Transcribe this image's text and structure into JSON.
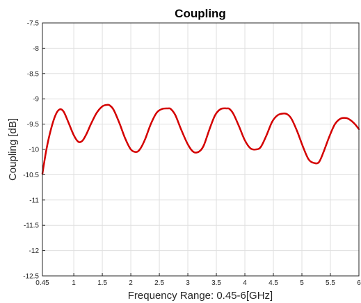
{
  "chart_data": {
    "type": "line",
    "title": "Coupling",
    "xlabel": "Frequency Range: 0.45-6[GHz]",
    "ylabel": "Coupling [dB]",
    "xlim": [
      0.45,
      6
    ],
    "ylim": [
      -12.5,
      -7.5
    ],
    "xticks": [
      0.45,
      1,
      1.5,
      2,
      2.5,
      3,
      3.5,
      4,
      4.5,
      5,
      5.5,
      6
    ],
    "xtick_labels": [
      "0.45",
      "1",
      "1.5",
      "2",
      "2.5",
      "3",
      "3.5",
      "4",
      "4.5",
      "5",
      "5.5",
      "6"
    ],
    "yticks": [
      -7.5,
      -8,
      -8.5,
      -9,
      -9.5,
      -10,
      -10.5,
      -11,
      -11.5,
      -12,
      -12.5
    ],
    "ytick_labels": [
      "-7.5",
      "-8",
      "-8.5",
      "-9",
      "-9.5",
      "-10",
      "-10.5",
      "-11",
      "-11.5",
      "-12",
      "-12.5"
    ],
    "grid": true,
    "line_color": "#d40000",
    "series": [
      {
        "x": [
          0.45,
          0.52,
          0.6,
          0.68,
          0.75,
          0.82,
          0.9,
          1.0,
          1.08,
          1.15,
          1.22,
          1.3,
          1.4,
          1.5,
          1.58,
          1.63,
          1.7,
          1.8,
          1.9,
          2.0,
          2.1,
          2.17,
          2.25,
          2.35,
          2.45,
          2.55,
          2.65,
          2.7,
          2.78,
          2.88,
          3.0,
          3.1,
          3.2,
          3.28,
          3.38,
          3.48,
          3.58,
          3.68,
          3.73,
          3.8,
          3.9,
          4.0,
          4.1,
          4.2,
          4.28,
          4.38,
          4.48,
          4.58,
          4.68,
          4.75,
          4.82,
          4.92,
          5.02,
          5.12,
          5.22,
          5.3,
          5.38,
          5.48,
          5.58,
          5.68,
          5.78,
          5.85,
          5.93,
          6.0
        ],
        "y": [
          -10.48,
          -10.0,
          -9.6,
          -9.32,
          -9.21,
          -9.25,
          -9.45,
          -9.72,
          -9.85,
          -9.83,
          -9.7,
          -9.5,
          -9.28,
          -9.15,
          -9.12,
          -9.13,
          -9.22,
          -9.48,
          -9.78,
          -10.0,
          -10.05,
          -9.98,
          -9.8,
          -9.5,
          -9.28,
          -9.2,
          -9.19,
          -9.2,
          -9.32,
          -9.6,
          -9.9,
          -10.05,
          -10.04,
          -9.92,
          -9.6,
          -9.32,
          -9.2,
          -9.19,
          -9.2,
          -9.3,
          -9.55,
          -9.82,
          -9.98,
          -10.0,
          -9.95,
          -9.72,
          -9.45,
          -9.32,
          -9.29,
          -9.31,
          -9.4,
          -9.65,
          -9.95,
          -10.2,
          -10.27,
          -10.25,
          -10.05,
          -9.75,
          -9.5,
          -9.39,
          -9.38,
          -9.42,
          -9.5,
          -9.6
        ]
      }
    ]
  }
}
